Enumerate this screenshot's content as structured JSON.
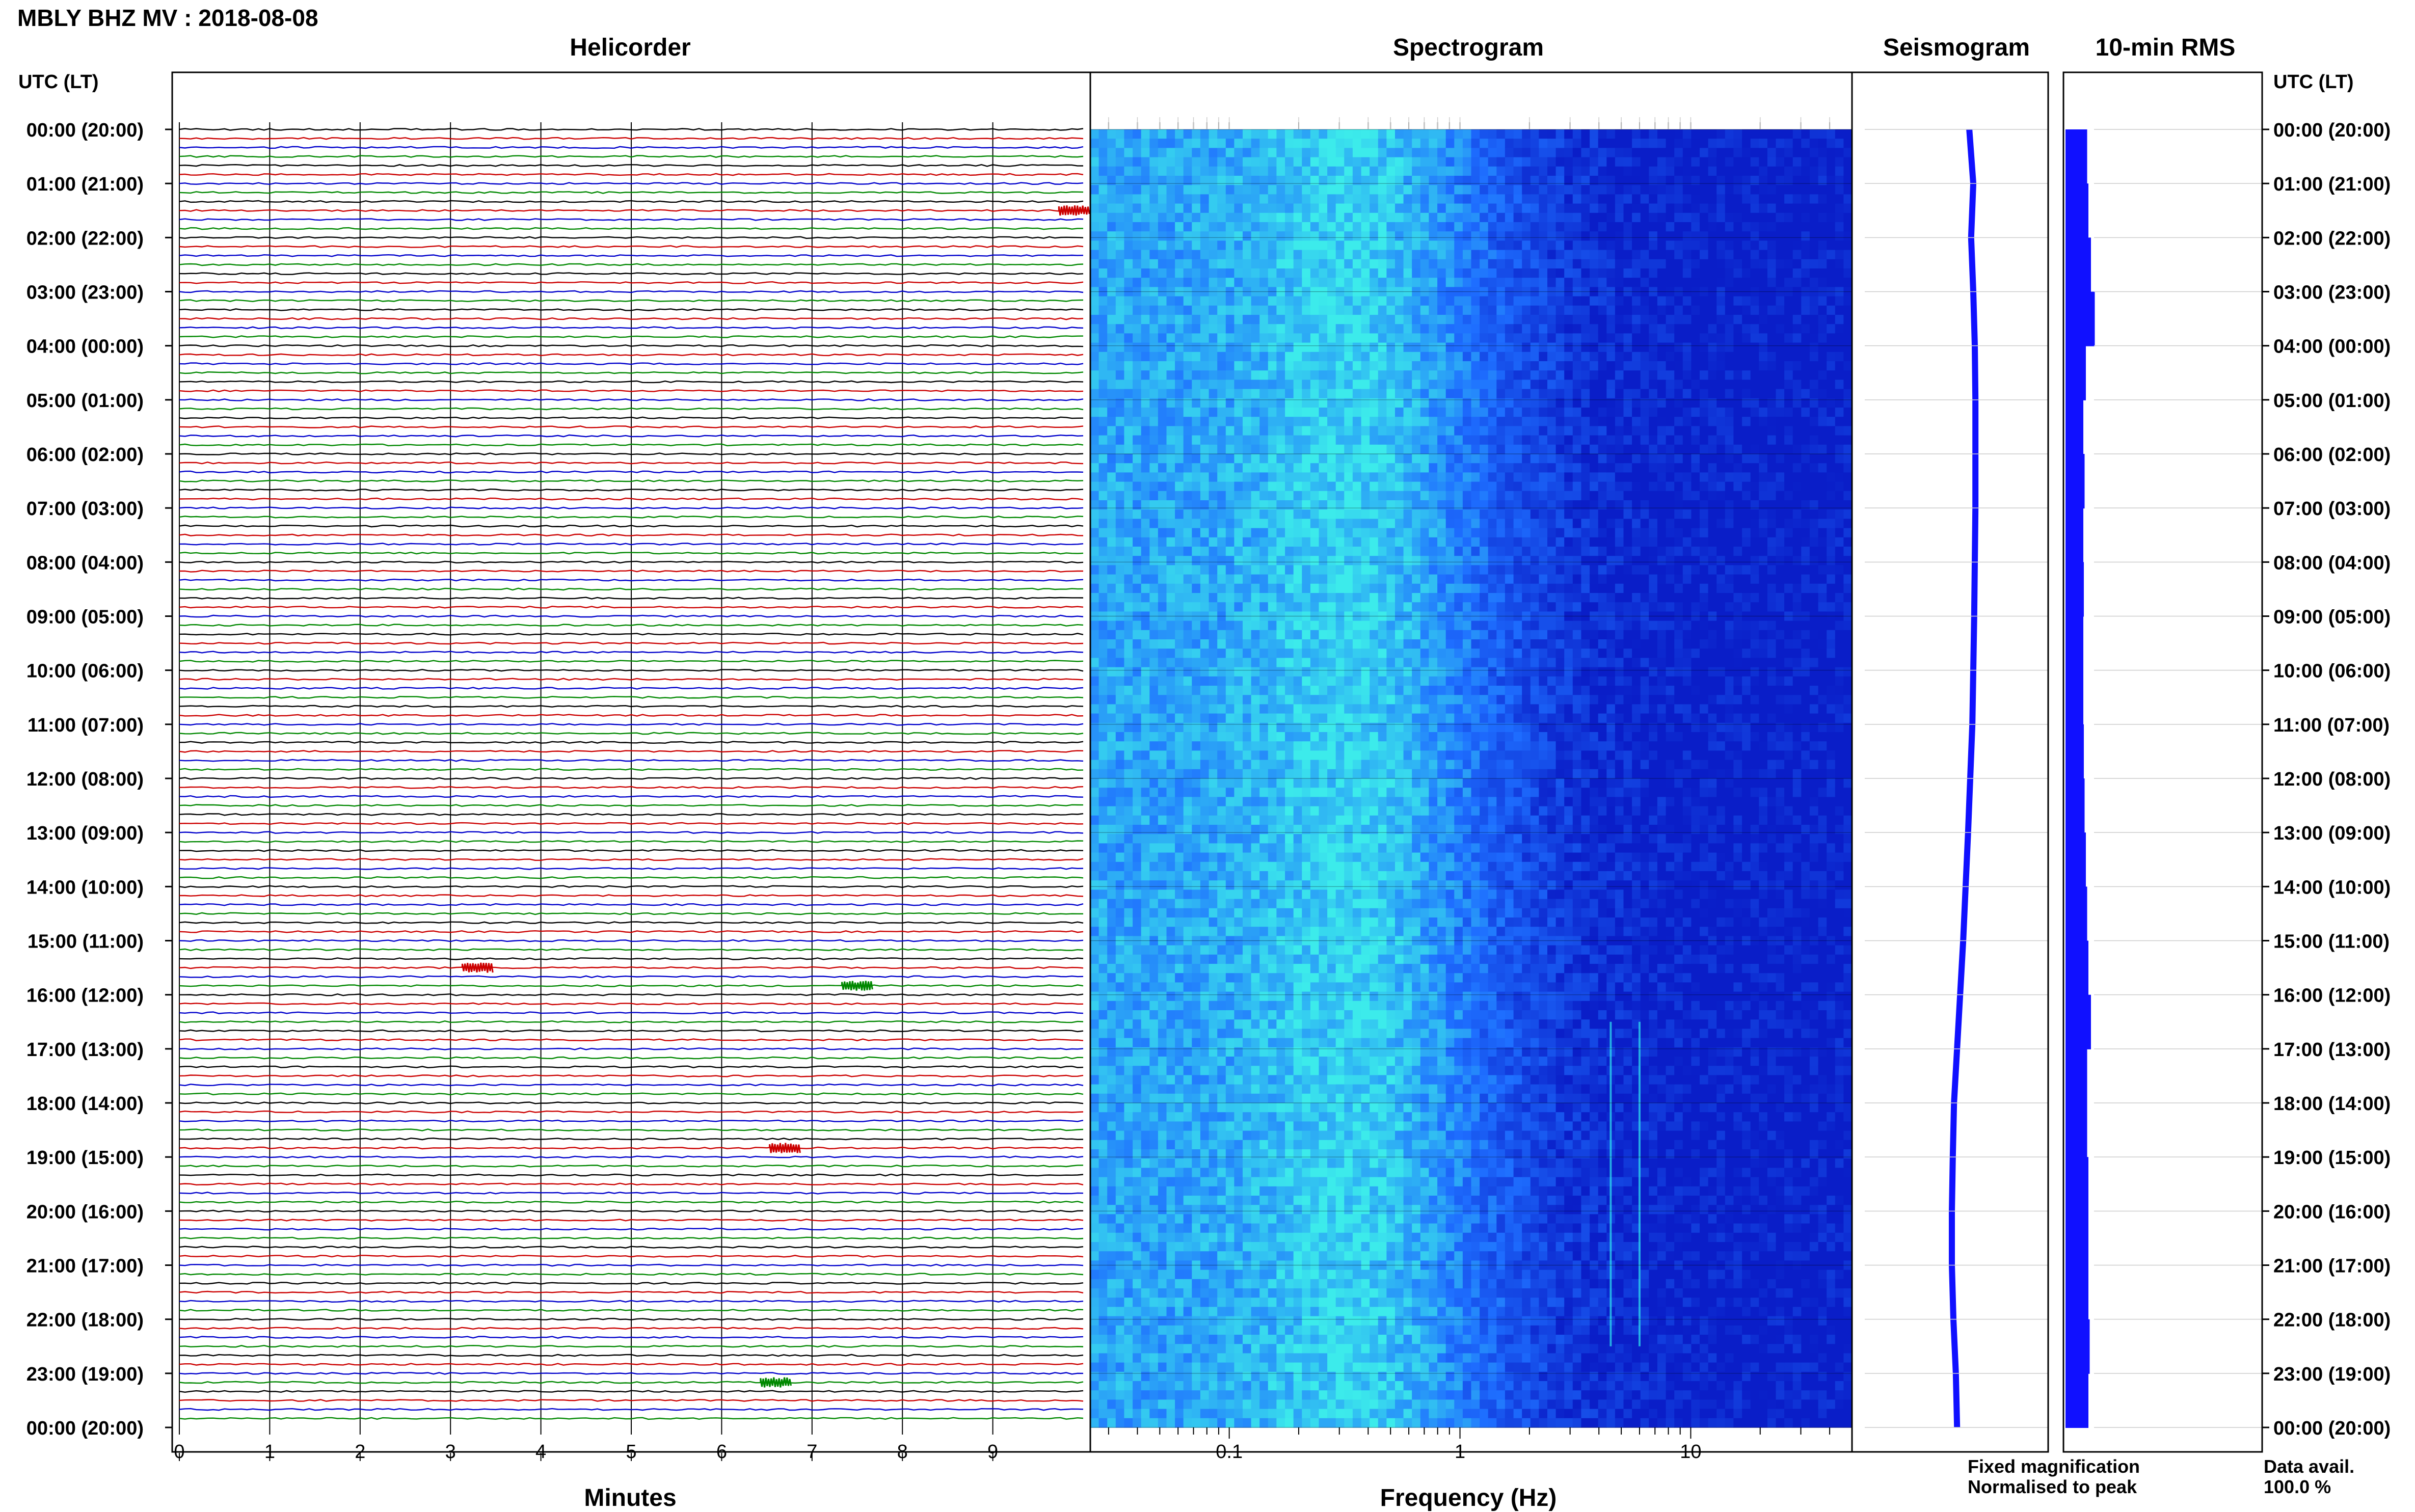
{
  "title": "MBLY BHZ MV : 2018-08-08",
  "panels": {
    "helicorder": "Helicorder",
    "spectrogram": "Spectrogram",
    "seismogram": "Seismogram",
    "rms": "10-min RMS"
  },
  "utc_label": "UTC (LT)",
  "time_labels": [
    "00:00 (20:00)",
    "01:00 (21:00)",
    "02:00 (22:00)",
    "03:00 (23:00)",
    "04:00 (00:00)",
    "05:00 (01:00)",
    "06:00 (02:00)",
    "07:00 (03:00)",
    "08:00 (04:00)",
    "09:00 (05:00)",
    "10:00 (06:00)",
    "11:00 (07:00)",
    "12:00 (08:00)",
    "13:00 (09:00)",
    "14:00 (10:00)",
    "15:00 (11:00)",
    "16:00 (12:00)",
    "17:00 (13:00)",
    "18:00 (14:00)",
    "19:00 (15:00)",
    "20:00 (16:00)",
    "21:00 (17:00)",
    "22:00 (18:00)",
    "23:00 (19:00)",
    "00:00 (20:00)"
  ],
  "legend": {
    "fixed": "Fixed magnification",
    "normalised": "Normalised to peak",
    "data_avail_label": "Data avail.",
    "data_avail_value": "100.0 %"
  },
  "colors": {
    "fixed": "#1010ff",
    "normalised": "#ff1a1a",
    "trace_cycle": [
      "#000000",
      "#cc0000",
      "#0000cc",
      "#008800"
    ],
    "spec_low": "#0a1ec8",
    "spec_mid": "#1e50ff",
    "spec_high": "#2ee6f0"
  },
  "chart_data": [
    {
      "type": "line",
      "name": "helicorder",
      "title": "Helicorder",
      "xlabel": "Minutes",
      "x_ticks": [
        0,
        1,
        2,
        3,
        4,
        5,
        6,
        7,
        8,
        9
      ],
      "xlim": [
        0,
        10
      ],
      "rows_per_hour": 6,
      "hours": 24,
      "notable_events": [
        {
          "hour": 1,
          "row": 3,
          "minute": 9.9
        },
        {
          "hour": 15,
          "row": 3,
          "minute": 3.3
        },
        {
          "hour": 15,
          "row": 5,
          "minute": 7.5
        },
        {
          "hour": 18,
          "row": 5,
          "minute": 6.7
        },
        {
          "hour": 23,
          "row": 1,
          "minute": 6.6
        }
      ]
    },
    {
      "type": "heatmap",
      "name": "spectrogram",
      "title": "Spectrogram",
      "xlabel": "Frequency (Hz)",
      "x_scale": "log",
      "xlim": [
        0.025,
        50
      ],
      "x_ticks": [
        0.1,
        1,
        10
      ],
      "x_tick_labels": [
        "0.1",
        "1",
        "10"
      ],
      "peak_frequency_hz": 0.3,
      "narrowband_lines_hz": [
        4.5,
        6.0
      ]
    },
    {
      "type": "line",
      "name": "seismogram",
      "title": "Seismogram",
      "values": [
        0.42,
        0.55,
        0.48,
        0.55,
        0.6,
        0.62,
        0.62,
        0.62,
        0.6,
        0.58,
        0.55,
        0.52,
        0.45,
        0.38,
        0.3,
        0.22,
        0.12,
        0.02,
        -0.08,
        -0.12,
        -0.15,
        -0.15,
        -0.1,
        -0.02,
        0.02
      ]
    },
    {
      "type": "bar",
      "name": "rms",
      "title": "10-min RMS",
      "values": [
        0.85,
        0.9,
        1.0,
        1.15,
        0.8,
        0.7,
        0.75,
        0.7,
        0.72,
        0.7,
        0.7,
        0.72,
        0.75,
        0.8,
        0.85,
        0.9,
        1.0,
        0.85,
        0.85,
        0.9,
        0.9,
        0.9,
        0.95,
        0.9
      ]
    }
  ]
}
